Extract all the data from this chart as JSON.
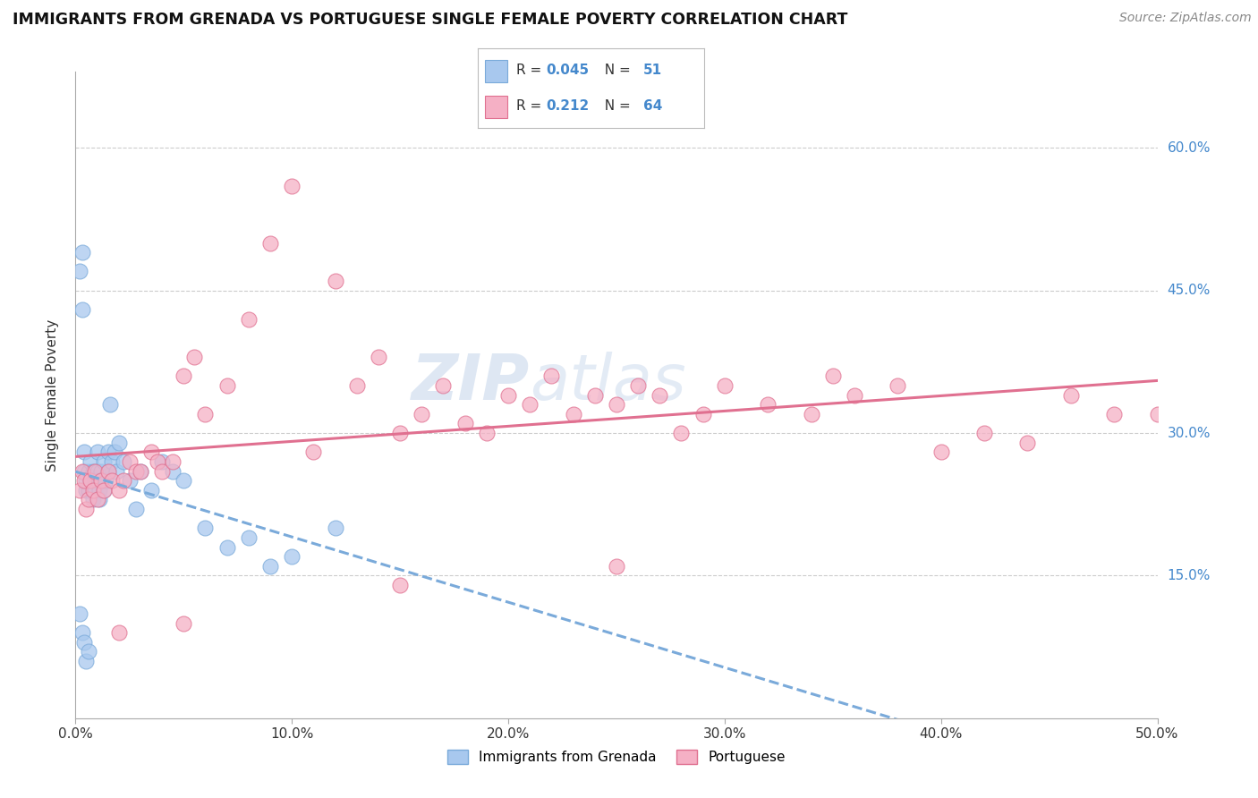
{
  "title": "IMMIGRANTS FROM GRENADA VS PORTUGUESE SINGLE FEMALE POVERTY CORRELATION CHART",
  "source": "Source: ZipAtlas.com",
  "ylabel": "Single Female Poverty",
  "legend_entry1": "Immigrants from Grenada",
  "legend_entry2": "Portuguese",
  "R1": 0.045,
  "N1": 51,
  "R2": 0.212,
  "N2": 64,
  "color1": "#a8c8ee",
  "color1_edge": "#7aaada",
  "color2": "#f5b0c5",
  "color2_edge": "#e07090",
  "trendline1_color": "#7aaada",
  "trendline2_color": "#e07090",
  "xlim": [
    0.0,
    0.5
  ],
  "ylim": [
    0.0,
    0.68
  ],
  "xtick_values": [
    0.0,
    0.1,
    0.2,
    0.3,
    0.4,
    0.5
  ],
  "xtick_labels": [
    "0.0%",
    "10.0%",
    "20.0%",
    "30.0%",
    "40.0%",
    "50.0%"
  ],
  "ytick_values_right": [
    0.15,
    0.3,
    0.45,
    0.6
  ],
  "ytick_labels_right": [
    "15.0%",
    "30.0%",
    "45.0%",
    "60.0%"
  ],
  "background_color": "#ffffff",
  "grid_color": "#cccccc",
  "watermark_line1": "ZIP",
  "watermark_line2": "atlas",
  "scatter1_x": [
    0.002,
    0.003,
    0.003,
    0.004,
    0.004,
    0.005,
    0.005,
    0.006,
    0.006,
    0.007,
    0.007,
    0.008,
    0.008,
    0.009,
    0.009,
    0.01,
    0.01,
    0.01,
    0.011,
    0.011,
    0.012,
    0.012,
    0.013,
    0.013,
    0.014,
    0.015,
    0.015,
    0.016,
    0.017,
    0.018,
    0.019,
    0.02,
    0.022,
    0.025,
    0.028,
    0.03,
    0.035,
    0.04,
    0.045,
    0.05,
    0.06,
    0.07,
    0.08,
    0.09,
    0.1,
    0.12,
    0.002,
    0.003,
    0.004,
    0.005,
    0.006
  ],
  "scatter1_y": [
    0.47,
    0.49,
    0.43,
    0.28,
    0.26,
    0.24,
    0.25,
    0.26,
    0.24,
    0.27,
    0.25,
    0.23,
    0.26,
    0.25,
    0.24,
    0.28,
    0.26,
    0.25,
    0.24,
    0.23,
    0.26,
    0.25,
    0.27,
    0.24,
    0.25,
    0.28,
    0.26,
    0.33,
    0.27,
    0.28,
    0.26,
    0.29,
    0.27,
    0.25,
    0.22,
    0.26,
    0.24,
    0.27,
    0.26,
    0.25,
    0.2,
    0.18,
    0.19,
    0.16,
    0.17,
    0.2,
    0.11,
    0.09,
    0.08,
    0.06,
    0.07
  ],
  "scatter2_x": [
    0.002,
    0.003,
    0.004,
    0.005,
    0.006,
    0.007,
    0.008,
    0.009,
    0.01,
    0.012,
    0.013,
    0.015,
    0.017,
    0.02,
    0.022,
    0.025,
    0.028,
    0.03,
    0.035,
    0.038,
    0.04,
    0.045,
    0.05,
    0.055,
    0.06,
    0.07,
    0.08,
    0.09,
    0.1,
    0.11,
    0.12,
    0.13,
    0.14,
    0.15,
    0.16,
    0.17,
    0.18,
    0.19,
    0.2,
    0.21,
    0.22,
    0.23,
    0.24,
    0.25,
    0.26,
    0.27,
    0.28,
    0.29,
    0.3,
    0.32,
    0.34,
    0.36,
    0.38,
    0.4,
    0.42,
    0.44,
    0.46,
    0.48,
    0.5,
    0.35,
    0.25,
    0.15,
    0.05,
    0.02
  ],
  "scatter2_y": [
    0.24,
    0.26,
    0.25,
    0.22,
    0.23,
    0.25,
    0.24,
    0.26,
    0.23,
    0.25,
    0.24,
    0.26,
    0.25,
    0.24,
    0.25,
    0.27,
    0.26,
    0.26,
    0.28,
    0.27,
    0.26,
    0.27,
    0.36,
    0.38,
    0.32,
    0.35,
    0.42,
    0.5,
    0.56,
    0.28,
    0.46,
    0.35,
    0.38,
    0.3,
    0.32,
    0.35,
    0.31,
    0.3,
    0.34,
    0.33,
    0.36,
    0.32,
    0.34,
    0.33,
    0.35,
    0.34,
    0.3,
    0.32,
    0.35,
    0.33,
    0.32,
    0.34,
    0.35,
    0.28,
    0.3,
    0.29,
    0.34,
    0.32,
    0.32,
    0.36,
    0.16,
    0.14,
    0.1,
    0.09
  ]
}
